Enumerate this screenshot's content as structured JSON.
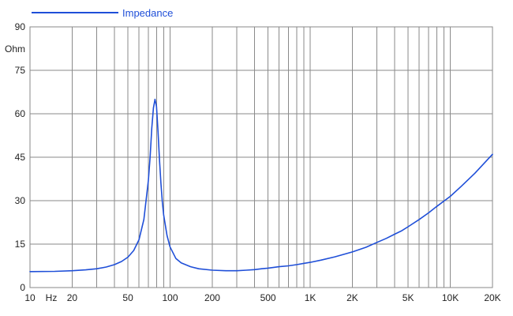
{
  "chart_data": {
    "type": "line",
    "x_scale": "log",
    "xlim": [
      10,
      20000
    ],
    "ylim": [
      0,
      90
    ],
    "ylabel": "Ohm",
    "xunit": "Hz",
    "grid": true,
    "legend_position": "top-left",
    "x_ticks": [
      {
        "value": 10,
        "label": "10"
      },
      {
        "value": 20,
        "label": "20"
      },
      {
        "value": 50,
        "label": "50"
      },
      {
        "value": 100,
        "label": "100"
      },
      {
        "value": 200,
        "label": "200"
      },
      {
        "value": 500,
        "label": "500"
      },
      {
        "value": 1000,
        "label": "1K"
      },
      {
        "value": 2000,
        "label": "2K"
      },
      {
        "value": 5000,
        "label": "5K"
      },
      {
        "value": 10000,
        "label": "10K"
      },
      {
        "value": 20000,
        "label": "20K"
      }
    ],
    "y_ticks": [
      {
        "value": 0,
        "label": "0"
      },
      {
        "value": 15,
        "label": "15"
      },
      {
        "value": 30,
        "label": "30"
      },
      {
        "value": 45,
        "label": "45"
      },
      {
        "value": 60,
        "label": "60"
      },
      {
        "value": 75,
        "label": "75"
      },
      {
        "value": 90,
        "label": "90"
      }
    ],
    "grid_x": [
      10,
      20,
      30,
      40,
      50,
      60,
      70,
      80,
      90,
      100,
      200,
      300,
      400,
      500,
      600,
      700,
      800,
      900,
      1000,
      2000,
      3000,
      4000,
      5000,
      6000,
      7000,
      8000,
      9000,
      10000,
      20000
    ],
    "series": [
      {
        "name": "Impedance",
        "color": "#1f4fd8",
        "x": [
          10,
          15,
          20,
          25,
          30,
          35,
          40,
          45,
          50,
          55,
          60,
          65,
          70,
          72,
          74,
          76,
          78,
          80,
          82,
          84,
          86,
          88,
          90,
          95,
          100,
          110,
          120,
          140,
          160,
          200,
          250,
          300,
          350,
          400,
          450,
          500,
          600,
          700,
          800,
          1000,
          1200,
          1500,
          2000,
          2500,
          3000,
          3500,
          4000,
          4500,
          5000,
          6000,
          7000,
          8000,
          10000,
          12000,
          15000,
          20000
        ],
        "y": [
          5.5,
          5.6,
          5.8,
          6.1,
          6.5,
          7.1,
          7.9,
          9.0,
          10.5,
          12.8,
          16.5,
          23.5,
          37.0,
          45.0,
          55.0,
          62.0,
          65.0,
          62.5,
          54.0,
          44.0,
          36.0,
          29.5,
          25.0,
          18.0,
          14.0,
          10.0,
          8.5,
          7.2,
          6.5,
          6.0,
          5.8,
          5.8,
          6.0,
          6.2,
          6.5,
          6.7,
          7.2,
          7.5,
          7.9,
          8.7,
          9.5,
          10.6,
          12.3,
          13.9,
          15.6,
          17.0,
          18.4,
          19.6,
          21.0,
          23.5,
          25.8,
          28.0,
          31.5,
          35.0,
          39.5,
          46.0
        ]
      }
    ]
  }
}
